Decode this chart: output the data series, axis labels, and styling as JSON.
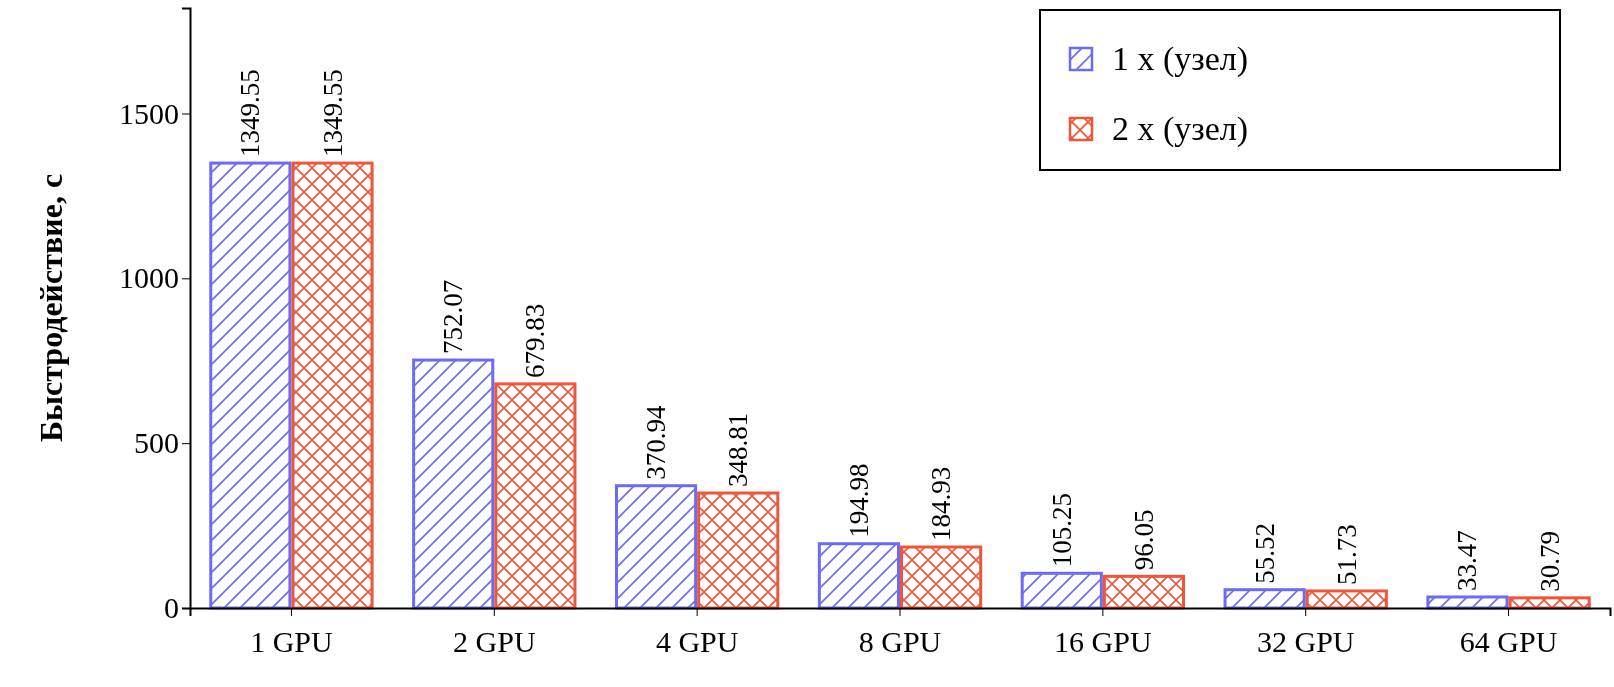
{
  "chart_data": {
    "type": "bar",
    "ylabel": "Быстродействие, с",
    "categories": [
      "1 GPU",
      "2 GPU",
      "4 GPU",
      "8 GPU",
      "16 GPU",
      "32 GPU",
      "64 GPU"
    ],
    "series": [
      {
        "name": "1 x (узел)",
        "color": "#6b6bf5",
        "values": [
          1349.55,
          752.07,
          370.94,
          194.98,
          105.25,
          55.52,
          33.47
        ]
      },
      {
        "name": "2 x (узел)",
        "color": "#ef553b",
        "values": [
          1349.55,
          679.83,
          348.81,
          184.93,
          96.05,
          51.73,
          30.79
        ]
      }
    ],
    "ylim": [
      0,
      1820
    ],
    "yticks": [
      0,
      500,
      1000,
      1500
    ],
    "data_labels": true,
    "legend": "top right",
    "grid": false
  }
}
